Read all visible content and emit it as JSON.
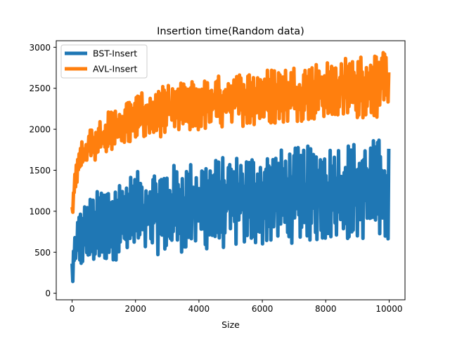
{
  "chart_data": {
    "type": "line",
    "title": "Insertion time(Random data)",
    "xlabel": "Size",
    "ylabel": "",
    "xlim": [
      -500,
      10500
    ],
    "ylim": [
      -80,
      3080
    ],
    "xticks": [
      0,
      2000,
      4000,
      6000,
      8000,
      10000
    ],
    "yticks": [
      0,
      500,
      1000,
      1500,
      2000,
      2500,
      3000
    ],
    "grid": false,
    "legend_position": "top-left",
    "series": [
      {
        "name": "BST-Insert",
        "color": "#1f77b4",
        "x": [
          0,
          100,
          200,
          500,
          1000,
          2000,
          3000,
          4000,
          5000,
          6000,
          7000,
          8000,
          9000,
          10000
        ],
        "low": [
          40,
          250,
          290,
          330,
          380,
          440,
          480,
          520,
          550,
          580,
          610,
          630,
          650,
          660
        ],
        "high": [
          420,
          800,
          1000,
          1150,
          1320,
          1480,
          1560,
          1620,
          1680,
          1730,
          1780,
          1820,
          1860,
          1900
        ]
      },
      {
        "name": "AVL-Insert",
        "color": "#ff7f0e",
        "x": [
          0,
          100,
          200,
          500,
          1000,
          2000,
          3000,
          4000,
          5000,
          6000,
          7000,
          8000,
          9000,
          10000
        ],
        "low": [
          620,
          1250,
          1380,
          1560,
          1700,
          1850,
          1920,
          1970,
          2020,
          2060,
          2090,
          2110,
          2130,
          2150
        ],
        "high": [
          1250,
          1600,
          1780,
          2000,
          2180,
          2420,
          2540,
          2620,
          2680,
          2730,
          2780,
          2840,
          2900,
          2960
        ]
      }
    ]
  }
}
